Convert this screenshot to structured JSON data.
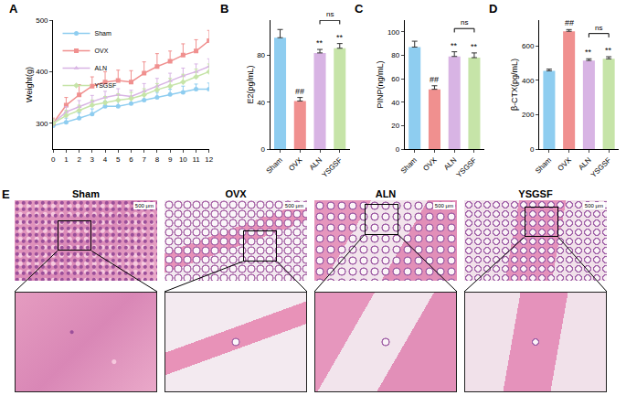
{
  "chart_data": [
    {
      "panel": "A",
      "type": "line",
      "y_label": "Weight(g)",
      "x": [
        0,
        1,
        2,
        3,
        4,
        5,
        6,
        7,
        8,
        9,
        10,
        11,
        12
      ],
      "xlim": [
        0,
        12
      ],
      "xticks": [
        0,
        1,
        2,
        3,
        4,
        5,
        6,
        7,
        8,
        9,
        10,
        11,
        12
      ],
      "ylim": [
        250,
        500
      ],
      "yticks": [
        300,
        400,
        500
      ],
      "legend": "upper left",
      "series": [
        {
          "name": "Sham",
          "color": "#8ecdf0",
          "marker": "circle",
          "values": [
            295,
            302,
            310,
            318,
            333,
            333,
            338,
            345,
            350,
            356,
            360,
            366,
            366
          ],
          "errors": [
            8,
            8,
            10,
            10,
            10,
            10,
            10,
            10,
            10,
            10,
            12,
            10,
            12
          ]
        },
        {
          "name": "OVX",
          "color": "#f0908f",
          "marker": "square",
          "values": [
            300,
            335,
            355,
            372,
            380,
            383,
            380,
            397,
            410,
            420,
            432,
            440,
            460
          ],
          "errors": [
            10,
            15,
            20,
            18,
            20,
            20,
            22,
            22,
            25,
            20,
            22,
            22,
            20
          ]
        },
        {
          "name": "ALN",
          "color": "#d8b4e4",
          "marker": "triangle-up",
          "values": [
            300,
            322,
            332,
            342,
            350,
            355,
            352,
            362,
            372,
            382,
            392,
            400,
            410
          ],
          "errors": [
            8,
            10,
            12,
            12,
            12,
            12,
            12,
            15,
            15,
            15,
            15,
            15,
            15
          ]
        },
        {
          "name": "YSGSF",
          "color": "#c6e4a8",
          "marker": "diamond",
          "values": [
            300,
            315,
            325,
            335,
            340,
            345,
            348,
            355,
            365,
            372,
            380,
            390,
            400
          ],
          "errors": [
            8,
            10,
            10,
            10,
            12,
            12,
            12,
            12,
            12,
            15,
            15,
            15,
            15
          ]
        }
      ]
    },
    {
      "panel": "B",
      "type": "bar",
      "y_label": "E2(pg/mL)",
      "categories": [
        "Sham",
        "OVX",
        "ALN",
        "YSGSF"
      ],
      "values": [
        95,
        41,
        82,
        86
      ],
      "errors": [
        7,
        3,
        3,
        4
      ],
      "colors": [
        "#8ecdf0",
        "#f0908f",
        "#d8b4e4",
        "#c6e4a8"
      ],
      "ylim": [
        0,
        110
      ],
      "yticks": [
        0,
        40,
        80
      ],
      "significance": [
        null,
        "##",
        "**",
        "**"
      ],
      "comparison": {
        "from": "ALN",
        "to": "YSGSF",
        "text": "ns"
      }
    },
    {
      "panel": "C",
      "type": "bar",
      "y_label": "PINP(ng/mL)",
      "categories": [
        "Sham",
        "OVX",
        "ALN",
        "YSGSF"
      ],
      "values": [
        87,
        51,
        79,
        78
      ],
      "errors": [
        5,
        3,
        4,
        4
      ],
      "colors": [
        "#8ecdf0",
        "#f0908f",
        "#d8b4e4",
        "#c6e4a8"
      ],
      "ylim": [
        0,
        110
      ],
      "yticks": [
        0,
        20,
        40,
        60,
        80,
        100
      ],
      "significance": [
        null,
        "##",
        "**",
        "**"
      ],
      "comparison": {
        "from": "ALN",
        "to": "YSGSF",
        "text": "ns"
      }
    },
    {
      "panel": "D",
      "type": "bar",
      "y_label": "β-CTX(pg/mL)",
      "categories": [
        "Sham",
        "OVX",
        "ALN",
        "YSGSF"
      ],
      "values": [
        455,
        685,
        515,
        525
      ],
      "errors": [
        10,
        10,
        10,
        12
      ],
      "colors": [
        "#8ecdf0",
        "#f0908f",
        "#d8b4e4",
        "#c6e4a8"
      ],
      "ylim": [
        0,
        750
      ],
      "yticks": [
        0,
        200,
        400,
        600
      ],
      "significance": [
        null,
        "##",
        "**",
        "**"
      ],
      "comparison": {
        "from": "ALN",
        "to": "YSGSF",
        "text": "ns"
      }
    }
  ],
  "histology": {
    "panel": "E",
    "groups": [
      "Sham",
      "OVX",
      "ALN",
      "YSGSF"
    ],
    "scale_bar": "500 μm"
  }
}
